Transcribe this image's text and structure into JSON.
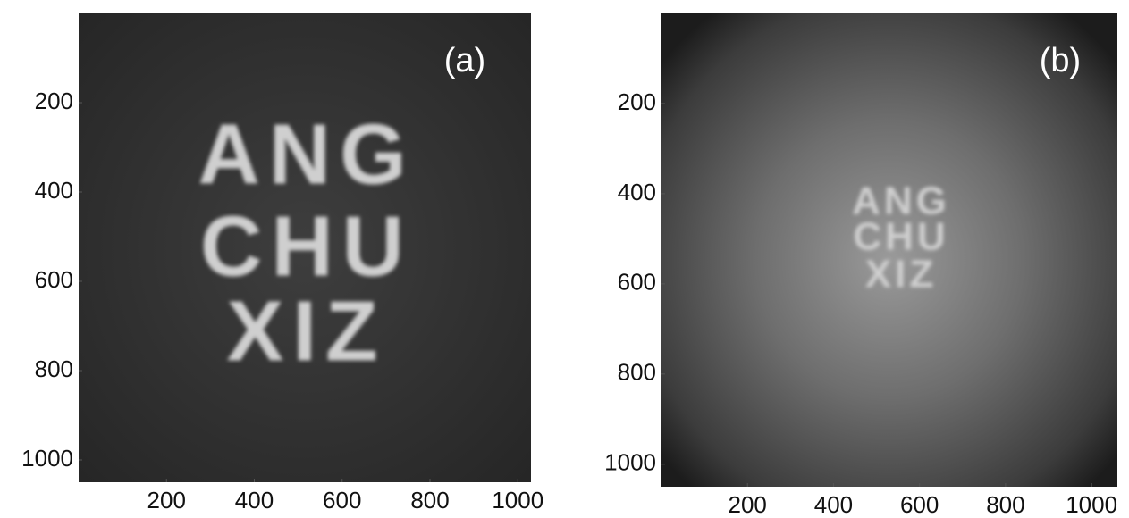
{
  "panels": [
    {
      "type": "image",
      "label": "(a)",
      "image_text": [
        "ANG",
        "CHU",
        "XIZ"
      ],
      "xlim": [
        0,
        1030
      ],
      "ylim": [
        0,
        1050
      ],
      "xticks": [
        200,
        400,
        600,
        800,
        1000
      ],
      "yticks": [
        200,
        400,
        600,
        800,
        1000
      ]
    },
    {
      "type": "image",
      "label": "(b)",
      "image_text": [
        "ANG",
        "CHU",
        "XIZ"
      ],
      "xlim": [
        0,
        1060
      ],
      "ylim": [
        0,
        1050
      ],
      "xticks": [
        200,
        400,
        600,
        800,
        1000
      ],
      "yticks": [
        200,
        400,
        600,
        800,
        1000
      ]
    }
  ]
}
